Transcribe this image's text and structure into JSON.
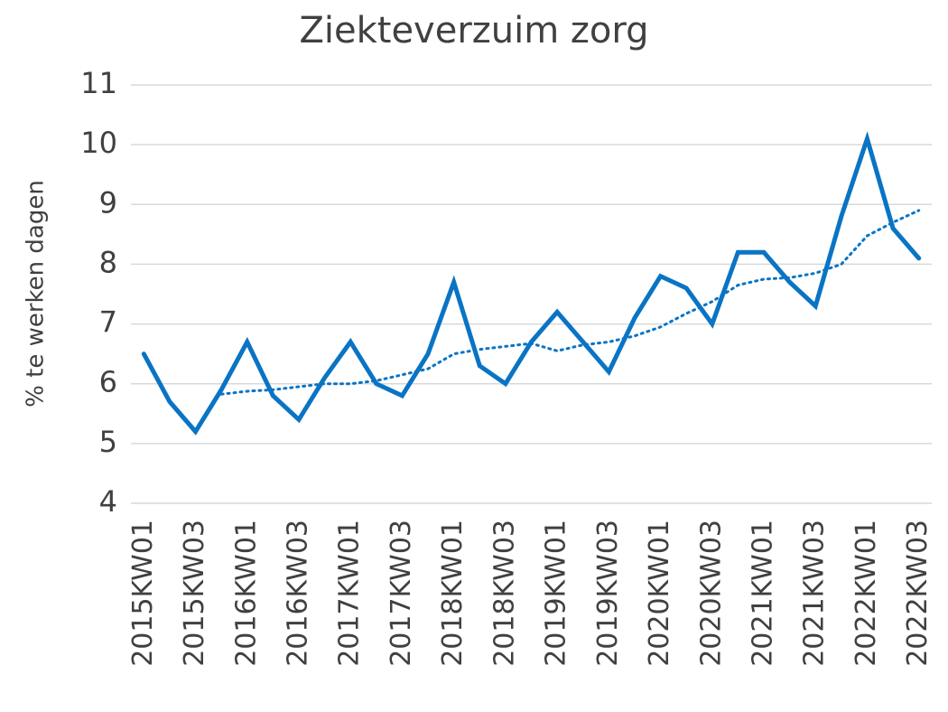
{
  "chart_data": {
    "type": "line",
    "title": "Ziekteverzuim zorg",
    "y_label": "% te werken dagen",
    "categories": [
      "2015KW01",
      null,
      "2015KW03",
      null,
      "2016KW01",
      null,
      "2016KW03",
      null,
      "2017KW01",
      null,
      "2017KW03",
      null,
      "2018KW01",
      null,
      "2018KW03",
      null,
      "2019KW01",
      null,
      "2019KW03",
      null,
      "2020KW01",
      null,
      "2020KW03",
      null,
      "2021KW01",
      null,
      "2021KW03",
      null,
      "2022KW01",
      null,
      "2022KW03"
    ],
    "series": [
      {
        "color": "#0a74c4",
        "values": [
          6.5,
          5.7,
          5.2,
          5.9,
          6.7,
          5.8,
          5.4,
          6.1,
          6.7,
          6.0,
          5.8,
          6.5,
          7.7,
          6.3,
          6.0,
          6.7,
          7.2,
          6.7,
          6.2,
          7.1,
          7.8,
          7.6,
          7.0,
          8.2,
          8.2,
          7.7,
          7.3,
          8.8,
          10.1,
          8.6,
          8.1
        ]
      },
      {
        "color": "#0a74c4",
        "dotted": true,
        "values": [
          null,
          null,
          null,
          5.825,
          5.875,
          5.9,
          5.95,
          6.0,
          6.0,
          6.05,
          6.15,
          6.25,
          6.5,
          6.575,
          6.625,
          6.675,
          6.55,
          6.65,
          6.7,
          6.8,
          6.95,
          7.175,
          7.375,
          7.65,
          7.75,
          7.775,
          7.85,
          8.0,
          8.475,
          8.7,
          8.9
        ]
      }
    ],
    "ylim": [
      4,
      11
    ],
    "yticks": [
      4,
      5,
      6,
      7,
      8,
      9,
      10,
      11
    ],
    "grid": true
  }
}
